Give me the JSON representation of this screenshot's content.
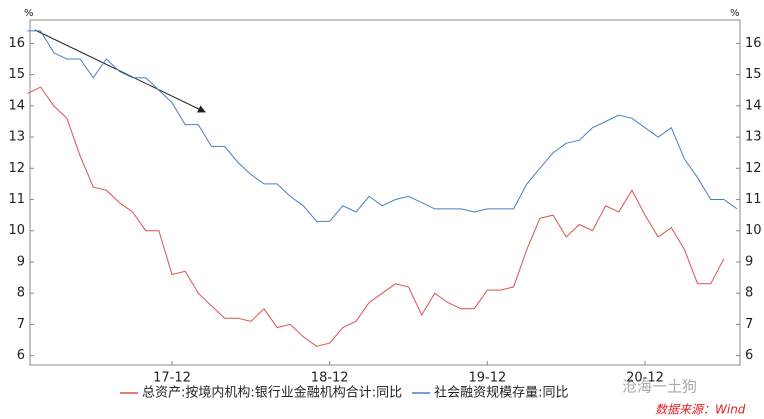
{
  "chart_data": {
    "type": "line",
    "y_label": "%",
    "y2_label": "%",
    "categories": [
      null,
      null,
      null,
      null,
      null,
      null,
      null,
      null,
      null,
      null,
      null,
      "17-12",
      null,
      null,
      null,
      null,
      null,
      null,
      null,
      null,
      null,
      null,
      null,
      "18-12",
      null,
      null,
      null,
      null,
      null,
      null,
      null,
      null,
      null,
      null,
      null,
      "19-12",
      null,
      null,
      null,
      null,
      null,
      null,
      null,
      null,
      null,
      null,
      null,
      "20-12",
      null,
      null,
      null,
      null,
      null,
      null,
      null
    ],
    "series": [
      {
        "name": "总资产:按境内机构:银行业金融机构合计:同比",
        "color": "#d9534f",
        "values": [
          14.4,
          14.6,
          14.0,
          13.6,
          12.4,
          11.4,
          11.3,
          10.9,
          10.6,
          10.0,
          10.0,
          8.6,
          8.7,
          8.0,
          7.6,
          7.2,
          7.2,
          7.1,
          7.5,
          6.9,
          7.0,
          6.6,
          6.3,
          6.4,
          6.9,
          7.1,
          7.7,
          8.0,
          8.3,
          8.2,
          7.3,
          8.0,
          7.7,
          7.5,
          7.5,
          8.1,
          8.1,
          8.2,
          9.4,
          10.4,
          10.5,
          9.8,
          10.2,
          10.0,
          10.8,
          10.6,
          11.3,
          10.5,
          9.8,
          10.1,
          9.4,
          8.3,
          8.3,
          9.1,
          null
        ]
      },
      {
        "name": "社会融资规模存量:同比",
        "color": "#4a7fc1",
        "values": [
          16.4,
          16.4,
          15.7,
          15.5,
          15.5,
          14.9,
          15.5,
          15.1,
          14.9,
          14.9,
          14.5,
          14.1,
          13.4,
          13.4,
          12.7,
          12.7,
          12.2,
          11.8,
          11.5,
          11.5,
          11.1,
          10.8,
          10.3,
          10.3,
          10.8,
          10.6,
          11.1,
          10.8,
          11.0,
          11.1,
          10.9,
          10.7,
          10.7,
          10.7,
          10.6,
          10.7,
          10.7,
          10.7,
          11.5,
          12.0,
          12.5,
          12.8,
          12.9,
          13.3,
          13.5,
          13.7,
          13.6,
          13.3,
          13.0,
          13.3,
          12.3,
          11.7,
          11.0,
          11.0,
          10.7
        ]
      }
    ],
    "ylim": [
      5.7,
      16.75
    ],
    "yticks": [
      6,
      7,
      8,
      9,
      10,
      11,
      12,
      13,
      14,
      15,
      16
    ],
    "y2lim": [
      5.7,
      16.75
    ],
    "y2ticks": [
      6,
      7,
      8,
      9,
      10,
      11,
      12,
      13,
      14,
      15,
      16
    ],
    "watermark": "沧海一土狗",
    "source": "数据来源：Wind"
  }
}
